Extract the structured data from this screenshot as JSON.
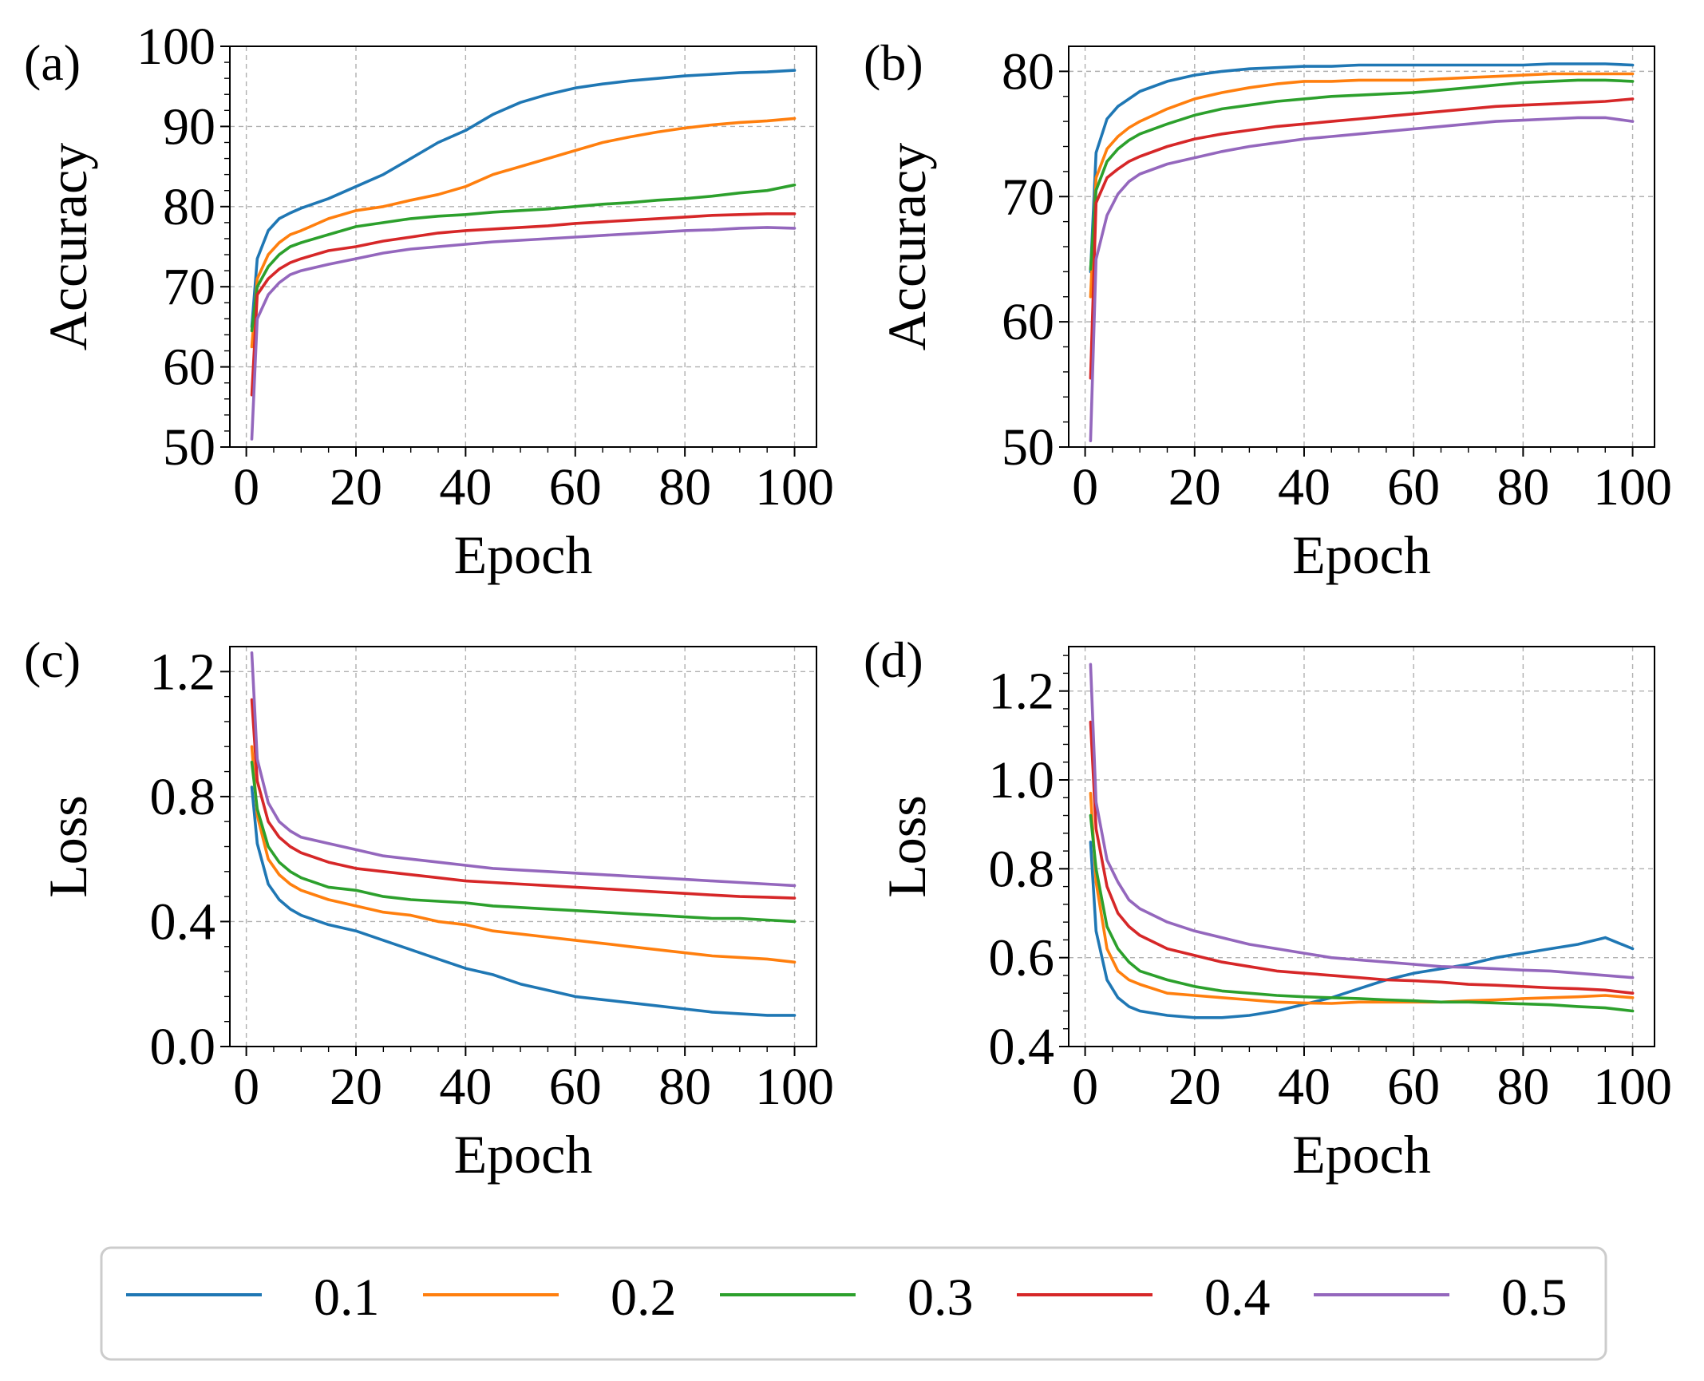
{
  "legend": {
    "entries": [
      {
        "label": "0.1",
        "color": "#1f77b4"
      },
      {
        "label": "0.2",
        "color": "#ff7f0e"
      },
      {
        "label": "0.3",
        "color": "#2ca02c"
      },
      {
        "label": "0.4",
        "color": "#d62728"
      },
      {
        "label": "0.5",
        "color": "#9467bd"
      }
    ]
  },
  "chart_data": [
    {
      "panel": "(a)",
      "type": "line",
      "xlabel": "Epoch",
      "ylabel": "Accuracy",
      "xlim": [
        -3,
        104
      ],
      "ylim": [
        50,
        100
      ],
      "xticks": [
        0,
        20,
        40,
        60,
        80,
        100
      ],
      "yticks": [
        50,
        60,
        70,
        80,
        90,
        100
      ],
      "ytick_labels": [
        "50",
        "60",
        "70",
        "80",
        "90",
        "100"
      ],
      "grid": true,
      "x": [
        1,
        2,
        4,
        6,
        8,
        10,
        15,
        20,
        25,
        30,
        35,
        40,
        45,
        50,
        55,
        60,
        65,
        70,
        75,
        80,
        85,
        90,
        95,
        100
      ],
      "series": [
        {
          "name": "0.1",
          "values": [
            65,
            73.5,
            77,
            78.5,
            79.2,
            79.8,
            81,
            82.5,
            84,
            86,
            88,
            89.5,
            91.5,
            93,
            94,
            94.8,
            95.3,
            95.7,
            96,
            96.3,
            96.5,
            96.7,
            96.8,
            97
          ]
        },
        {
          "name": "0.2",
          "values": [
            62.5,
            71,
            74,
            75.5,
            76.5,
            77,
            78.5,
            79.5,
            80,
            80.8,
            81.5,
            82.5,
            84,
            85,
            86,
            87,
            88,
            88.7,
            89.3,
            89.8,
            90.2,
            90.5,
            90.7,
            91
          ]
        },
        {
          "name": "0.3",
          "values": [
            64.5,
            70,
            72.5,
            74,
            75,
            75.5,
            76.5,
            77.5,
            78,
            78.5,
            78.8,
            79,
            79.3,
            79.5,
            79.7,
            80,
            80.3,
            80.5,
            80.8,
            81,
            81.3,
            81.7,
            82,
            82.7
          ]
        },
        {
          "name": "0.4",
          "values": [
            56.5,
            69,
            71,
            72.2,
            73,
            73.5,
            74.5,
            75,
            75.7,
            76.2,
            76.7,
            77,
            77.2,
            77.4,
            77.6,
            77.9,
            78.1,
            78.3,
            78.5,
            78.7,
            78.9,
            79,
            79.1,
            79.1
          ]
        },
        {
          "name": "0.5",
          "values": [
            51,
            66,
            69,
            70.5,
            71.5,
            72,
            72.8,
            73.5,
            74.2,
            74.7,
            75,
            75.3,
            75.6,
            75.8,
            76,
            76.2,
            76.4,
            76.6,
            76.8,
            77,
            77.1,
            77.3,
            77.4,
            77.3
          ]
        }
      ]
    },
    {
      "panel": "(b)",
      "type": "line",
      "xlabel": "Epoch",
      "ylabel": "Accuracy",
      "xlim": [
        -3,
        104
      ],
      "ylim": [
        50,
        82
      ],
      "xticks": [
        0,
        20,
        40,
        60,
        80,
        100
      ],
      "yticks": [
        50,
        60,
        70,
        80
      ],
      "ytick_labels": [
        "50",
        "60",
        "70",
        "80"
      ],
      "grid": true,
      "x": [
        1,
        2,
        4,
        6,
        8,
        10,
        15,
        20,
        25,
        30,
        35,
        40,
        45,
        50,
        55,
        60,
        65,
        70,
        75,
        80,
        85,
        90,
        95,
        100
      ],
      "series": [
        {
          "name": "0.1",
          "values": [
            64,
            73.5,
            76.2,
            77.2,
            77.8,
            78.4,
            79.2,
            79.7,
            80,
            80.2,
            80.3,
            80.4,
            80.4,
            80.5,
            80.5,
            80.5,
            80.5,
            80.5,
            80.5,
            80.5,
            80.6,
            80.6,
            80.6,
            80.5
          ]
        },
        {
          "name": "0.2",
          "values": [
            62,
            71.5,
            73.8,
            74.8,
            75.5,
            76,
            77,
            77.8,
            78.3,
            78.7,
            79,
            79.2,
            79.2,
            79.3,
            79.3,
            79.3,
            79.4,
            79.5,
            79.6,
            79.7,
            79.8,
            79.8,
            79.8,
            79.8
          ]
        },
        {
          "name": "0.3",
          "values": [
            64.2,
            70.5,
            72.8,
            73.8,
            74.5,
            75,
            75.8,
            76.5,
            77,
            77.3,
            77.6,
            77.8,
            78,
            78.1,
            78.2,
            78.3,
            78.5,
            78.7,
            78.9,
            79.1,
            79.2,
            79.3,
            79.3,
            79.2
          ]
        },
        {
          "name": "0.4",
          "values": [
            55.5,
            69.5,
            71.5,
            72.2,
            72.8,
            73.2,
            74,
            74.6,
            75,
            75.3,
            75.6,
            75.8,
            76,
            76.2,
            76.4,
            76.6,
            76.8,
            77,
            77.2,
            77.3,
            77.4,
            77.5,
            77.6,
            77.8
          ]
        },
        {
          "name": "0.5",
          "values": [
            50.5,
            65,
            68.5,
            70.2,
            71.2,
            71.8,
            72.6,
            73.1,
            73.6,
            74,
            74.3,
            74.6,
            74.8,
            75,
            75.2,
            75.4,
            75.6,
            75.8,
            76,
            76.1,
            76.2,
            76.3,
            76.3,
            76
          ]
        }
      ]
    },
    {
      "panel": "(c)",
      "type": "line",
      "xlabel": "Epoch",
      "ylabel": "Loss",
      "xlim": [
        -3,
        104
      ],
      "ylim": [
        0,
        1.28
      ],
      "xticks": [
        0,
        20,
        40,
        60,
        80,
        100
      ],
      "yticks": [
        0,
        0.4,
        0.8,
        1.2
      ],
      "ytick_labels": [
        "0.0",
        "0.4",
        "0.8",
        "1.2"
      ],
      "grid": true,
      "x": [
        1,
        2,
        4,
        6,
        8,
        10,
        15,
        20,
        25,
        30,
        35,
        40,
        45,
        50,
        55,
        60,
        65,
        70,
        75,
        80,
        85,
        90,
        95,
        100
      ],
      "series": [
        {
          "name": "0.1",
          "values": [
            0.83,
            0.65,
            0.52,
            0.47,
            0.44,
            0.42,
            0.39,
            0.37,
            0.34,
            0.31,
            0.28,
            0.25,
            0.23,
            0.2,
            0.18,
            0.16,
            0.15,
            0.14,
            0.13,
            0.12,
            0.11,
            0.105,
            0.1,
            0.1
          ]
        },
        {
          "name": "0.2",
          "values": [
            0.96,
            0.74,
            0.6,
            0.55,
            0.52,
            0.5,
            0.47,
            0.45,
            0.43,
            0.42,
            0.4,
            0.39,
            0.37,
            0.36,
            0.35,
            0.34,
            0.33,
            0.32,
            0.31,
            0.3,
            0.29,
            0.285,
            0.28,
            0.27
          ]
        },
        {
          "name": "0.3",
          "values": [
            0.91,
            0.76,
            0.64,
            0.59,
            0.56,
            0.54,
            0.51,
            0.5,
            0.48,
            0.47,
            0.465,
            0.46,
            0.45,
            0.445,
            0.44,
            0.435,
            0.43,
            0.425,
            0.42,
            0.415,
            0.41,
            0.41,
            0.405,
            0.4
          ]
        },
        {
          "name": "0.4",
          "values": [
            1.11,
            0.85,
            0.72,
            0.67,
            0.64,
            0.62,
            0.59,
            0.57,
            0.56,
            0.55,
            0.54,
            0.53,
            0.525,
            0.52,
            0.515,
            0.51,
            0.505,
            0.5,
            0.495,
            0.49,
            0.485,
            0.48,
            0.478,
            0.475
          ]
        },
        {
          "name": "0.5",
          "values": [
            1.26,
            0.92,
            0.78,
            0.72,
            0.69,
            0.67,
            0.65,
            0.63,
            0.61,
            0.6,
            0.59,
            0.58,
            0.57,
            0.565,
            0.56,
            0.555,
            0.55,
            0.545,
            0.54,
            0.535,
            0.53,
            0.525,
            0.52,
            0.515
          ]
        }
      ]
    },
    {
      "panel": "(d)",
      "type": "line",
      "xlabel": "Epoch",
      "ylabel": "Loss",
      "xlim": [
        -3,
        104
      ],
      "ylim": [
        0.4,
        1.3
      ],
      "xticks": [
        0,
        20,
        40,
        60,
        80,
        100
      ],
      "yticks": [
        0.4,
        0.6,
        0.8,
        1.0,
        1.2
      ],
      "ytick_labels": [
        "0.4",
        "0.6",
        "0.8",
        "1.0",
        "1.2"
      ],
      "grid": true,
      "x": [
        1,
        2,
        4,
        6,
        8,
        10,
        15,
        20,
        25,
        30,
        35,
        40,
        45,
        50,
        55,
        60,
        65,
        70,
        75,
        80,
        85,
        90,
        95,
        100
      ],
      "series": [
        {
          "name": "0.1",
          "values": [
            0.86,
            0.66,
            0.55,
            0.51,
            0.49,
            0.48,
            0.47,
            0.465,
            0.465,
            0.47,
            0.48,
            0.495,
            0.51,
            0.53,
            0.55,
            0.565,
            0.575,
            0.585,
            0.6,
            0.61,
            0.62,
            0.63,
            0.645,
            0.62
          ]
        },
        {
          "name": "0.2",
          "values": [
            0.97,
            0.77,
            0.62,
            0.57,
            0.55,
            0.54,
            0.52,
            0.515,
            0.51,
            0.505,
            0.5,
            0.498,
            0.497,
            0.5,
            0.5,
            0.5,
            0.5,
            0.503,
            0.505,
            0.508,
            0.51,
            0.512,
            0.515,
            0.51
          ]
        },
        {
          "name": "0.3",
          "values": [
            0.92,
            0.8,
            0.67,
            0.62,
            0.59,
            0.57,
            0.55,
            0.535,
            0.525,
            0.52,
            0.515,
            0.512,
            0.51,
            0.508,
            0.505,
            0.503,
            0.5,
            0.5,
            0.498,
            0.496,
            0.494,
            0.49,
            0.487,
            0.48
          ]
        },
        {
          "name": "0.4",
          "values": [
            1.13,
            0.89,
            0.76,
            0.7,
            0.67,
            0.65,
            0.62,
            0.605,
            0.59,
            0.58,
            0.57,
            0.565,
            0.56,
            0.555,
            0.55,
            0.548,
            0.545,
            0.54,
            0.538,
            0.535,
            0.532,
            0.53,
            0.527,
            0.52
          ]
        },
        {
          "name": "0.5",
          "values": [
            1.26,
            0.95,
            0.82,
            0.77,
            0.73,
            0.71,
            0.68,
            0.66,
            0.645,
            0.63,
            0.62,
            0.61,
            0.6,
            0.595,
            0.59,
            0.585,
            0.58,
            0.578,
            0.575,
            0.572,
            0.57,
            0.565,
            0.56,
            0.555
          ]
        }
      ]
    }
  ]
}
